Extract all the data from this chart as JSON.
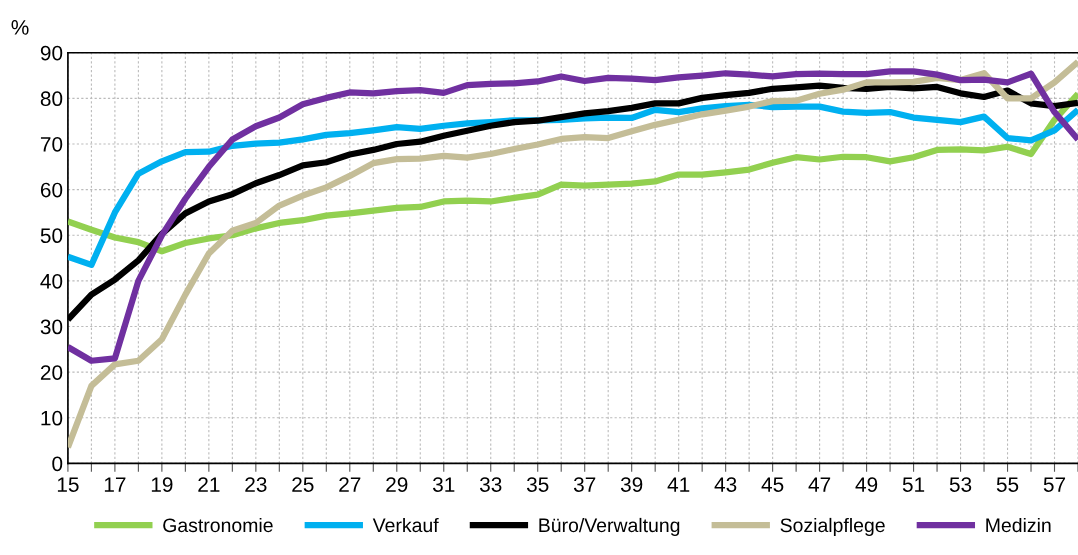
{
  "chart_data": {
    "type": "line",
    "ylabel": "%",
    "x": [
      15,
      16,
      17,
      18,
      19,
      20,
      21,
      22,
      23,
      24,
      25,
      26,
      27,
      28,
      29,
      30,
      31,
      32,
      33,
      34,
      35,
      36,
      37,
      38,
      39,
      40,
      41,
      42,
      43,
      44,
      45,
      46,
      47,
      48,
      49,
      50,
      51,
      52,
      53,
      54,
      55,
      56,
      57,
      58
    ],
    "series": [
      {
        "name": "Gastronomie",
        "color": "#92d050",
        "values": [
          53,
          51.2,
          49.5,
          48.5,
          46.5,
          48.3,
          49.3,
          50,
          51.5,
          52.7,
          53.3,
          54.3,
          54.8,
          55.4,
          56,
          56.2,
          57.4,
          57.6,
          57.4,
          58.2,
          58.9,
          61.1,
          60.9,
          61.1,
          61.3,
          61.8,
          63.3,
          63.3,
          63.8,
          64.4,
          65.9,
          67.1,
          66.6,
          67.2,
          67.1,
          66.2,
          67.1,
          68.7,
          68.8,
          68.6,
          69.4,
          67.8,
          75.3,
          81
        ]
      },
      {
        "name": "Verkauf",
        "color": "#00b0f0",
        "values": [
          45.3,
          43.5,
          55,
          63.5,
          66.2,
          68.2,
          68.3,
          69.6,
          70.1,
          70.3,
          71,
          72,
          72.4,
          73,
          73.7,
          73.3,
          74,
          74.5,
          74.8,
          75.2,
          75.2,
          75.3,
          75.6,
          75.8,
          75.7,
          77.5,
          77,
          77.8,
          78.3,
          78.6,
          78.1,
          78.2,
          78.2,
          77.1,
          76.8,
          77,
          75.8,
          75.3,
          74.8,
          76,
          71.3,
          70.8,
          73,
          77.5
        ]
      },
      {
        "name": "Büro/Verwaltung",
        "color": "#000000",
        "values": [
          31.5,
          37,
          40.3,
          44.5,
          50.3,
          54.8,
          57.4,
          59,
          61.4,
          63.2,
          65.3,
          66,
          67.7,
          68.7,
          70,
          70.5,
          71.8,
          72.9,
          74,
          74.8,
          75.1,
          75.9,
          76.7,
          77.2,
          77.9,
          78.9,
          78.9,
          80.1,
          80.7,
          81.2,
          82.1,
          82.4,
          82.8,
          82.3,
          82.1,
          82.5,
          82.2,
          82.5,
          81.1,
          80.3,
          81.7,
          78.9,
          78.3,
          79
        ]
      },
      {
        "name": "Sozialpflege",
        "color": "#c4bd97",
        "values": [
          3.5,
          17,
          21.7,
          22.5,
          27.2,
          37,
          46,
          51,
          52.7,
          56.5,
          58.7,
          60.5,
          63,
          65.8,
          66.7,
          66.8,
          67.4,
          67,
          67.8,
          68.9,
          69.9,
          71.1,
          71.5,
          71.3,
          72.8,
          74.2,
          75.3,
          76.5,
          77.3,
          78.2,
          79.4,
          79.5,
          81,
          81.9,
          83.5,
          83.5,
          83.6,
          84.5,
          84,
          85.5,
          80,
          80,
          83.5,
          88
        ]
      },
      {
        "name": "Medizin",
        "color": "#7030a0",
        "values": [
          25.5,
          22.5,
          23,
          40,
          50,
          58,
          65,
          71,
          73.9,
          75.8,
          78.7,
          80.1,
          81.3,
          81.1,
          81.6,
          81.8,
          81.2,
          82.9,
          83.2,
          83.3,
          83.7,
          84.8,
          83.8,
          84.5,
          84.3,
          84,
          84.6,
          85,
          85.5,
          85.2,
          84.8,
          85.3,
          85.4,
          85.3,
          85.3,
          85.9,
          85.9,
          85.2,
          84,
          84.1,
          83.5,
          85.4,
          77,
          71
        ]
      }
    ],
    "xlim": [
      15,
      58
    ],
    "xticks": [
      15,
      {
        "value": 16,
        "label": null
      },
      17,
      {
        "value": 18,
        "label": null
      },
      19,
      {
        "value": 20,
        "label": null
      },
      21,
      {
        "value": 22,
        "label": null
      },
      23,
      {
        "value": 24,
        "label": null
      },
      25,
      {
        "value": 26,
        "label": null
      },
      27,
      {
        "value": 28,
        "label": null
      },
      29,
      {
        "value": 30,
        "label": null
      },
      31,
      {
        "value": 32,
        "label": null
      },
      33,
      {
        "value": 34,
        "label": null
      },
      35,
      {
        "value": 36,
        "label": null
      },
      37,
      {
        "value": 38,
        "label": null
      },
      39,
      {
        "value": 40,
        "label": null
      },
      41,
      {
        "value": 42,
        "label": null
      },
      43,
      {
        "value": 44,
        "label": null
      },
      45,
      {
        "value": 46,
        "label": null
      },
      47,
      {
        "value": 48,
        "label": null
      },
      49,
      {
        "value": 50,
        "label": null
      },
      51,
      {
        "value": 52,
        "label": null
      },
      53,
      {
        "value": 54,
        "label": null
      },
      55,
      {
        "value": 56,
        "label": null
      },
      57,
      {
        "value": 58,
        "label": null
      }
    ],
    "ylim": [
      0,
      90
    ],
    "yticks": [
      0,
      10,
      20,
      30,
      40,
      50,
      60,
      70,
      80,
      90
    ],
    "grid": true,
    "legend": "bottom",
    "line_style": "solid",
    "marker": "none"
  }
}
